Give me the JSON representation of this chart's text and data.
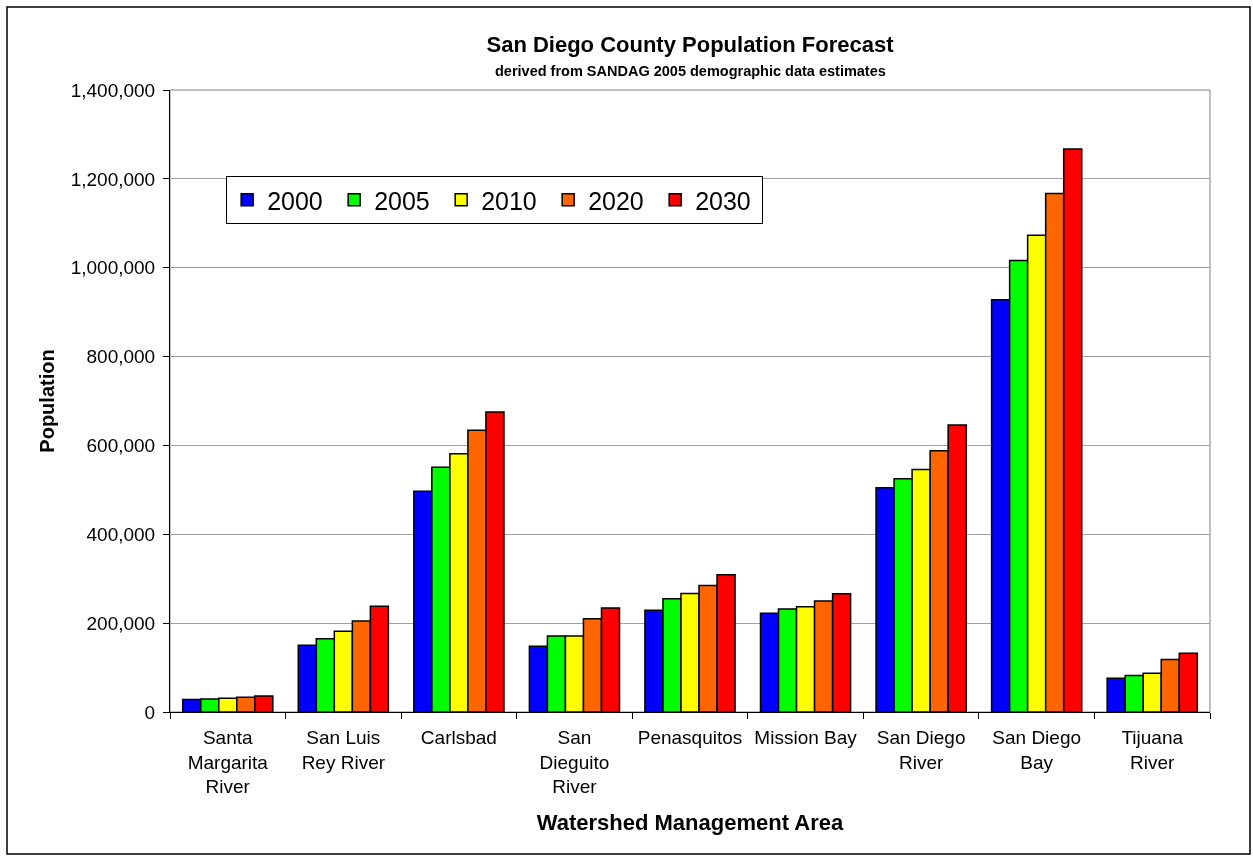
{
  "chart_data": {
    "type": "bar",
    "title": "San Diego County Population Forecast",
    "subtitle": "derived from SANDAG 2005 demographic data estimates",
    "xlabel": "Watershed Management Area",
    "ylabel": "Population",
    "categories": [
      "Santa Margarita River",
      "San Luis Rey River",
      "Carlsbad",
      "San Dieguito River",
      "Penasquitos",
      "Mission Bay",
      "San Diego River",
      "San Diego Bay",
      "Tijuana River"
    ],
    "series": [
      {
        "name": "2000",
        "color": "#0000ff",
        "values": [
          28000,
          150000,
          497000,
          148000,
          229000,
          222000,
          505000,
          928000,
          76000
        ]
      },
      {
        "name": "2005",
        "color": "#00ff00",
        "values": [
          29000,
          165000,
          551000,
          171000,
          255000,
          232000,
          525000,
          1016000,
          82000
        ]
      },
      {
        "name": "2010",
        "color": "#ffff00",
        "values": [
          31000,
          182000,
          581000,
          171000,
          267000,
          237000,
          546000,
          1073000,
          87000
        ]
      },
      {
        "name": "2020",
        "color": "#ff6600",
        "values": [
          33000,
          205000,
          634000,
          210000,
          285000,
          250000,
          588000,
          1167000,
          118000
        ]
      },
      {
        "name": "2030",
        "color": "#ff0000",
        "values": [
          36000,
          238000,
          675000,
          234000,
          309000,
          266000,
          646000,
          1267000,
          132000
        ]
      }
    ],
    "ylim": [
      0,
      1400000
    ],
    "yticks": [
      0,
      {
        "value": 200000,
        "label": "200,000"
      },
      {
        "value": 400000,
        "label": "400,000"
      },
      {
        "value": 600000,
        "label": "600,000"
      },
      {
        "value": 800000,
        "label": "800,000"
      },
      {
        "value": 1000000,
        "label": "1,000,000"
      },
      {
        "value": 1200000,
        "label": "1,200,000"
      },
      {
        "value": 1400000,
        "label": "1,400,000"
      }
    ],
    "grid": "y",
    "legend": "top left"
  }
}
